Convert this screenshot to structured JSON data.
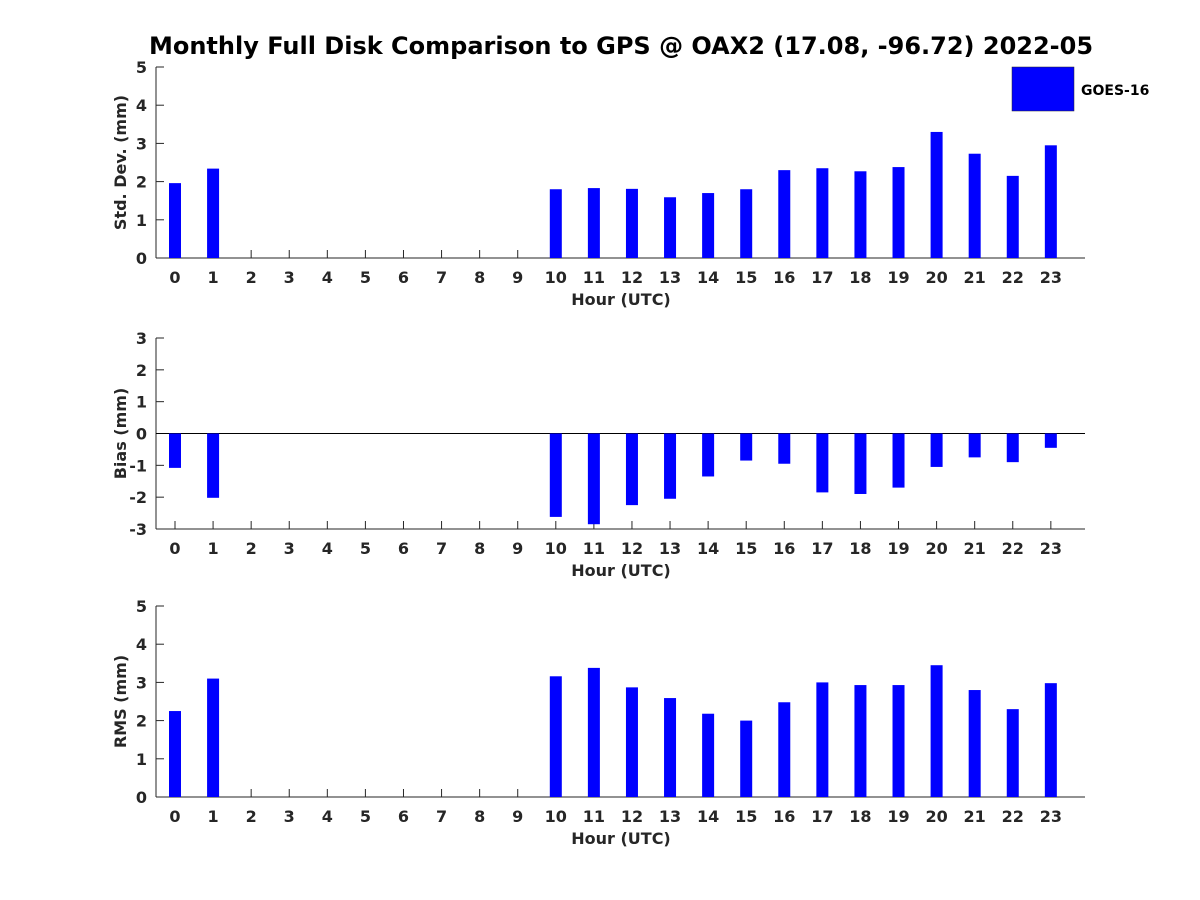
{
  "title": "Monthly Full Disk Comparison to GPS @ OAX2 (17.08, -96.72) 2022-05",
  "legend": {
    "label": "GOES-16",
    "color": "#0000ff",
    "placement": "top-right"
  },
  "colors": {
    "bar": "#0000ff",
    "axis": "#262626"
  },
  "chart_data": [
    {
      "type": "bar",
      "xlabel": "Hour (UTC)",
      "ylabel": "Std. Dev. (mm)",
      "ylim": [
        0,
        5
      ],
      "yticks": [
        0,
        1,
        2,
        3,
        4,
        5
      ],
      "categories": [
        "0",
        "1",
        "2",
        "3",
        "4",
        "5",
        "6",
        "7",
        "8",
        "9",
        "10",
        "11",
        "12",
        "13",
        "14",
        "15",
        "16",
        "17",
        "18",
        "19",
        "20",
        "21",
        "22",
        "23"
      ],
      "series": [
        {
          "name": "GOES-16",
          "values": [
            1.96,
            2.34,
            null,
            null,
            null,
            null,
            null,
            null,
            null,
            null,
            1.8,
            1.83,
            1.81,
            1.59,
            1.7,
            1.8,
            2.3,
            2.35,
            2.27,
            2.38,
            3.3,
            2.73,
            2.15,
            2.95
          ]
        }
      ]
    },
    {
      "type": "bar",
      "xlabel": "Hour (UTC)",
      "ylabel": "Bias (mm)",
      "ylim": [
        -3,
        3
      ],
      "yticks": [
        -3,
        -2,
        -1,
        0,
        1,
        2,
        3
      ],
      "zero_line": true,
      "categories": [
        "0",
        "1",
        "2",
        "3",
        "4",
        "5",
        "6",
        "7",
        "8",
        "9",
        "10",
        "11",
        "12",
        "13",
        "14",
        "15",
        "16",
        "17",
        "18",
        "19",
        "20",
        "21",
        "22",
        "23"
      ],
      "series": [
        {
          "name": "GOES-16",
          "values": [
            -1.08,
            -2.02,
            null,
            null,
            null,
            null,
            null,
            null,
            null,
            null,
            -2.62,
            -2.85,
            -2.25,
            -2.05,
            -1.35,
            -0.85,
            -0.95,
            -1.85,
            -1.9,
            -1.7,
            -1.05,
            -0.75,
            -0.9,
            -0.45
          ]
        }
      ]
    },
    {
      "type": "bar",
      "xlabel": "Hour (UTC)",
      "ylabel": "RMS (mm)",
      "ylim": [
        0,
        5
      ],
      "yticks": [
        0,
        1,
        2,
        3,
        4,
        5
      ],
      "categories": [
        "0",
        "1",
        "2",
        "3",
        "4",
        "5",
        "6",
        "7",
        "8",
        "9",
        "10",
        "11",
        "12",
        "13",
        "14",
        "15",
        "16",
        "17",
        "18",
        "19",
        "20",
        "21",
        "22",
        "23"
      ],
      "series": [
        {
          "name": "GOES-16",
          "values": [
            2.25,
            3.1,
            null,
            null,
            null,
            null,
            null,
            null,
            null,
            null,
            3.16,
            3.38,
            2.87,
            2.59,
            2.18,
            2.0,
            2.48,
            3.0,
            2.93,
            2.93,
            3.45,
            2.8,
            2.3,
            2.98
          ]
        }
      ]
    }
  ]
}
